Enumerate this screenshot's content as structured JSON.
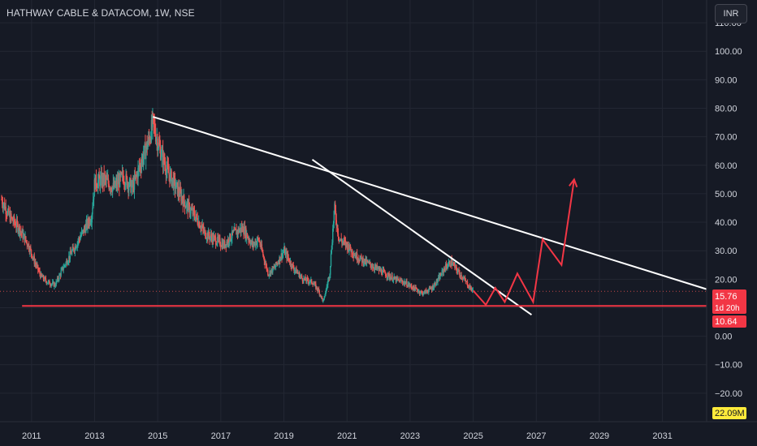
{
  "header": {
    "title": "HATHWAY CABLE & DATACOM, 1W, NSE",
    "currency": "INR"
  },
  "colors": {
    "background": "#161a25",
    "grid": "#232733",
    "up": "#26a69a",
    "down": "#ef5350",
    "trendline": "#ffffff",
    "support": "#f23645",
    "projection": "#f23645",
    "axis_text": "#d1d4dc",
    "price_badge": "#f23645",
    "volume_badge": "#ffeb3b"
  },
  "chart_data": {
    "type": "candlestick",
    "x_unit": "year",
    "xlim": [
      2010.0,
      2032.4
    ],
    "ylim": [
      -30,
      118
    ],
    "grid": true,
    "y_ticks": [
      "110.00",
      "100.00",
      "90.00",
      "80.00",
      "70.00",
      "60.00",
      "50.00",
      "40.00",
      "30.00",
      "20.00",
      "10.00",
      "0.00",
      "−10.00",
      "−20.00"
    ],
    "y_tick_values": [
      110,
      100,
      90,
      80,
      70,
      60,
      50,
      40,
      30,
      20,
      10,
      0,
      -10,
      -20
    ],
    "x_ticks": [
      "2011",
      "2013",
      "2015",
      "2017",
      "2019",
      "2021",
      "2023",
      "2025",
      "2027",
      "2029",
      "2031"
    ],
    "x_tick_values": [
      2011,
      2013,
      2015,
      2017,
      2019,
      2021,
      2023,
      2025,
      2027,
      2029,
      2031
    ],
    "price_path": [
      [
        2010.05,
        48
      ],
      [
        2010.3,
        42
      ],
      [
        2010.6,
        38
      ],
      [
        2010.9,
        32
      ],
      [
        2011.1,
        26
      ],
      [
        2011.3,
        21
      ],
      [
        2011.5,
        19
      ],
      [
        2011.75,
        18
      ],
      [
        2012.0,
        24
      ],
      [
        2012.3,
        30
      ],
      [
        2012.6,
        36
      ],
      [
        2012.9,
        42
      ],
      [
        2013.0,
        54
      ],
      [
        2013.3,
        55
      ],
      [
        2013.6,
        52
      ],
      [
        2013.9,
        56
      ],
      [
        2014.2,
        52
      ],
      [
        2014.5,
        62
      ],
      [
        2014.7,
        68
      ],
      [
        2014.85,
        75
      ],
      [
        2015.0,
        68
      ],
      [
        2015.3,
        58
      ],
      [
        2015.6,
        52
      ],
      [
        2015.9,
        46
      ],
      [
        2016.2,
        42
      ],
      [
        2016.5,
        36
      ],
      [
        2016.8,
        34
      ],
      [
        2017.1,
        32
      ],
      [
        2017.4,
        36
      ],
      [
        2017.7,
        38
      ],
      [
        2018.0,
        32
      ],
      [
        2018.2,
        34
      ],
      [
        2018.5,
        22
      ],
      [
        2018.7,
        24
      ],
      [
        2019.0,
        30
      ],
      [
        2019.3,
        24
      ],
      [
        2019.6,
        20
      ],
      [
        2019.9,
        19
      ],
      [
        2020.1,
        16
      ],
      [
        2020.25,
        12
      ],
      [
        2020.45,
        22
      ],
      [
        2020.6,
        45
      ],
      [
        2020.75,
        34
      ],
      [
        2021.0,
        32
      ],
      [
        2021.3,
        28
      ],
      [
        2021.6,
        26
      ],
      [
        2021.9,
        24
      ],
      [
        2022.2,
        22
      ],
      [
        2022.5,
        20
      ],
      [
        2022.8,
        19
      ],
      [
        2023.1,
        17
      ],
      [
        2023.4,
        15
      ],
      [
        2023.7,
        17
      ],
      [
        2023.9,
        20
      ],
      [
        2024.1,
        24
      ],
      [
        2024.3,
        26
      ],
      [
        2024.5,
        23
      ],
      [
        2024.7,
        20
      ],
      [
        2024.9,
        17
      ],
      [
        2025.0,
        16
      ]
    ],
    "last_price": "15.76",
    "countdown": "1d 20h",
    "support_price": "10.64",
    "support_value": 10.64,
    "volume_label": "22.09M",
    "trendlines": [
      {
        "from": [
          2014.85,
          77
        ],
        "to": [
          2032.4,
          16.5
        ]
      },
      {
        "from": [
          2019.9,
          62
        ],
        "to": [
          2026.85,
          7.5
        ]
      }
    ],
    "support_line": {
      "from": [
        2010.7,
        10.64
      ],
      "to": [
        2032.4,
        10.64
      ]
    },
    "projection_path": [
      [
        2025.0,
        16
      ],
      [
        2025.4,
        11
      ],
      [
        2025.7,
        17
      ],
      [
        2026.0,
        12
      ],
      [
        2026.4,
        22
      ],
      [
        2026.9,
        12
      ],
      [
        2027.2,
        34
      ],
      [
        2027.8,
        25
      ],
      [
        2028.2,
        55
      ]
    ]
  }
}
